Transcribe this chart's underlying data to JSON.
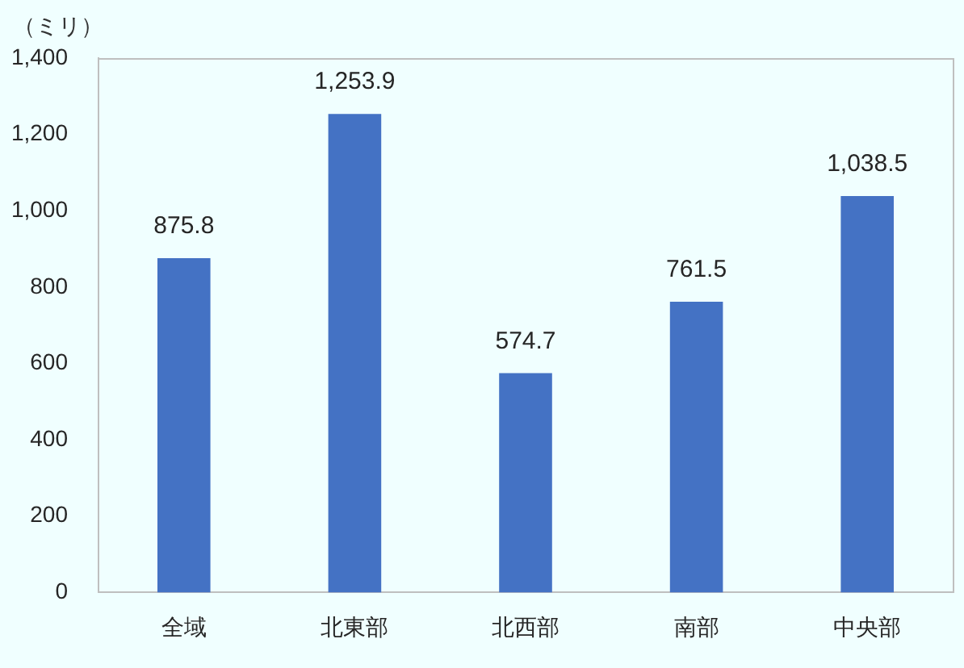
{
  "chart_data": {
    "type": "bar",
    "ylabel": "（ミリ）",
    "categories": [
      "全域",
      "北東部",
      "北西部",
      "南部",
      "中央部"
    ],
    "values": [
      875.8,
      1253.9,
      574.7,
      761.5,
      1038.5
    ],
    "value_labels": [
      "875.8",
      "1,253.9",
      "574.7",
      "761.5",
      "1,038.5"
    ],
    "color": "#4472c4",
    "ylim": [
      0,
      1400
    ],
    "yticks": [
      0,
      200,
      400,
      600,
      800,
      {
        "value": 1000,
        "label": "1,000"
      },
      {
        "value": 1200,
        "label": "1,200"
      },
      {
        "value": 1400,
        "label": "1,400"
      }
    ]
  }
}
